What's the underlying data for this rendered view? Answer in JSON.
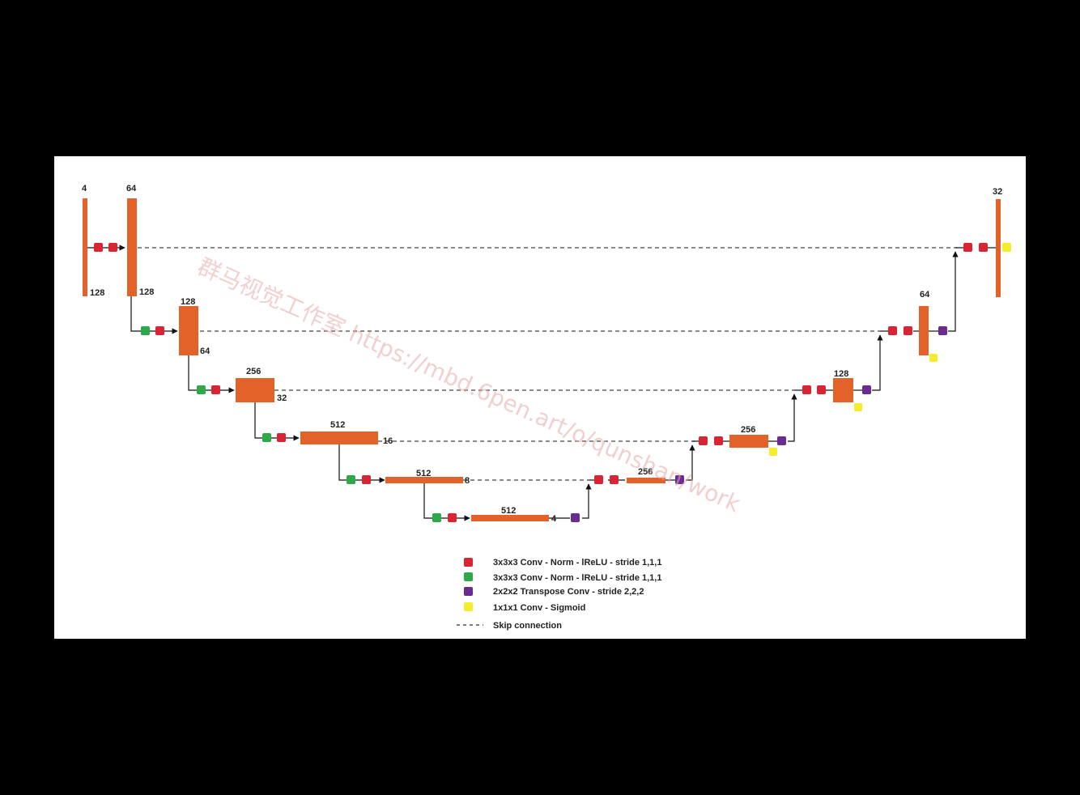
{
  "colors": {
    "block": "#E2622A",
    "conv_norm_red": "#D92533",
    "conv_norm_green": "#2FA84A",
    "transpose_conv": "#6A2C91",
    "conv_sigmoid": "#F5EC2C",
    "skip_line": "#444444"
  },
  "labels": {
    "enc0_channels": "4",
    "enc0_size": "128",
    "enc1_channels": "64",
    "enc1_size": "128",
    "enc2_channels": "128",
    "enc2_size": "64",
    "enc3_channels": "256",
    "enc3_size": "32",
    "enc4_channels": "512",
    "enc4_size": "16",
    "enc5_channels": "512",
    "enc5_size": "8",
    "bottleneck_channels": "512",
    "bottleneck_size": "4",
    "dec5_channels": "256",
    "dec4_channels": "256",
    "dec3_channels": "128",
    "dec2_channels": "64",
    "dec1_channels": "32"
  },
  "legend": {
    "red_conv": "3x3x3 Conv - Norm - lReLU - stride 1,1,1",
    "green_conv": "3x3x3 Conv - Norm - lReLU - stride 1,1,1",
    "transpose_conv": "2x2x2 Transpose Conv - stride 2,2,2",
    "sigmoid_conv": "1x1x1 Conv - Sigmoid",
    "skip_connection": "Skip connection"
  },
  "watermark": {
    "text": "群马视觉工作室 https://mbd.6pen.art/o/qunshan/work"
  }
}
